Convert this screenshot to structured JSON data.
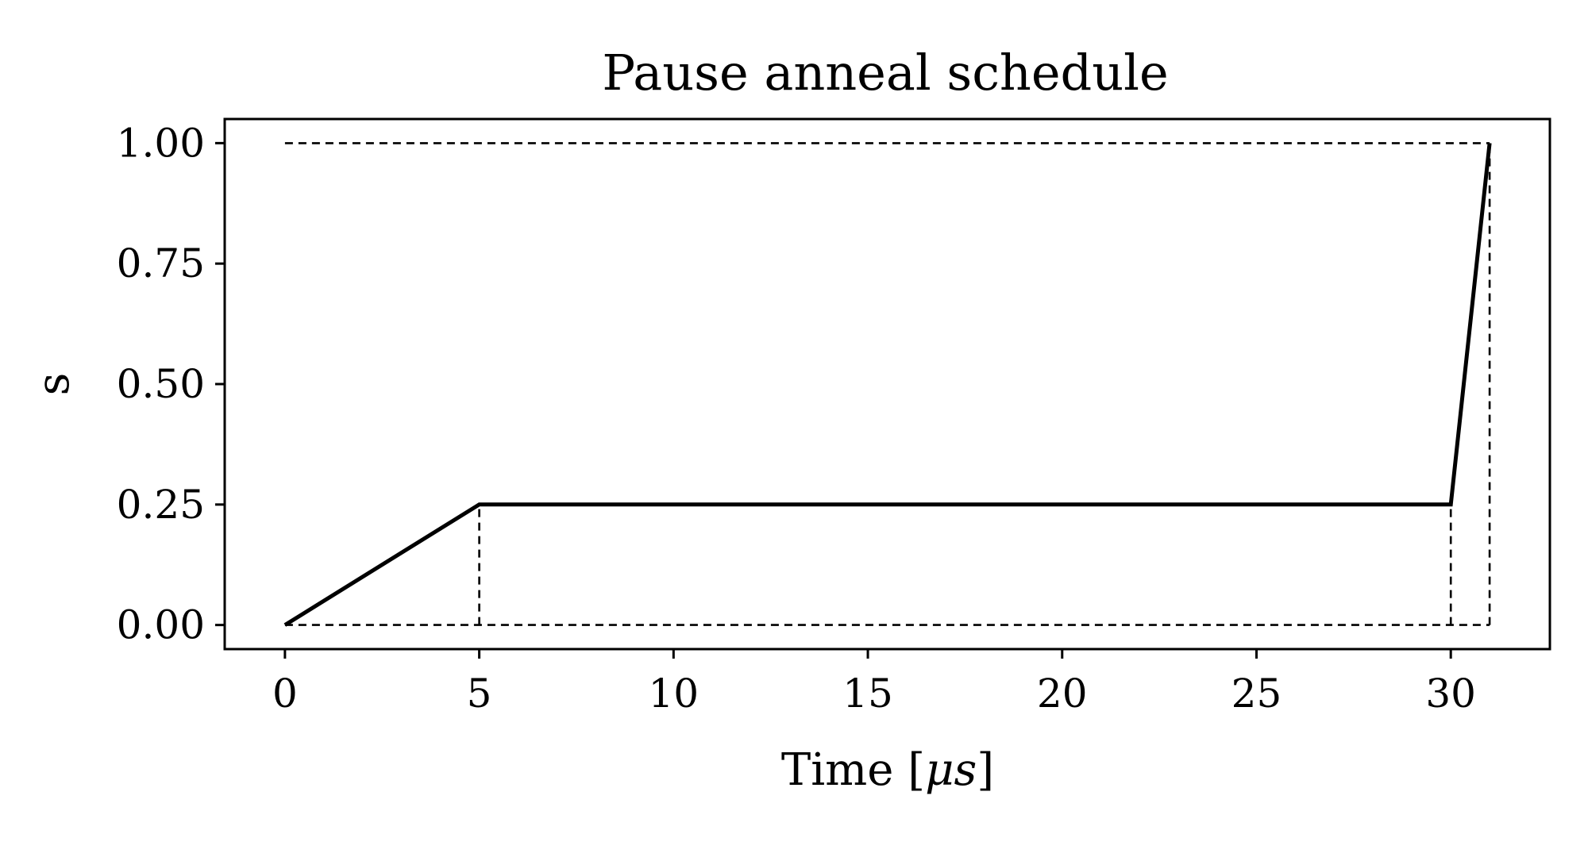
{
  "chart_data": {
    "type": "line",
    "title": "Pause anneal schedule",
    "xlabel": "Time [",
    "xlabel_math": "μs",
    "xlabel_close": "]",
    "ylabel": "s",
    "xlim": [
      -1.55,
      32.55
    ],
    "ylim": [
      -0.05,
      1.05
    ],
    "xticks": [
      0,
      5,
      10,
      15,
      20,
      25,
      30
    ],
    "xtick_labels": [
      "0",
      "5",
      "10",
      "15",
      "20",
      "25",
      "30"
    ],
    "yticks": [
      0,
      0.25,
      0.5,
      0.75,
      1.0
    ],
    "ytick_labels": [
      "0.00",
      "0.25",
      "0.50",
      "0.75",
      "1.00"
    ],
    "grid": false,
    "series": [
      {
        "style": "solid",
        "color": "#000000",
        "x": [
          0,
          5,
          30,
          31
        ],
        "y": [
          0,
          0.25,
          0.25,
          1.0
        ]
      }
    ],
    "reference_lines": [
      {
        "style": "dashed",
        "x": [
          0,
          31
        ],
        "y": [
          1.0,
          1.0
        ]
      },
      {
        "style": "dashed",
        "x": [
          0,
          31
        ],
        "y": [
          0,
          0
        ]
      },
      {
        "style": "dashed",
        "x": [
          5,
          5
        ],
        "y": [
          0,
          0.25
        ]
      },
      {
        "style": "dashed",
        "x": [
          30,
          30
        ],
        "y": [
          0,
          0.25
        ]
      },
      {
        "style": "dashed",
        "x": [
          31,
          31
        ],
        "y": [
          0,
          1.0
        ]
      }
    ]
  }
}
